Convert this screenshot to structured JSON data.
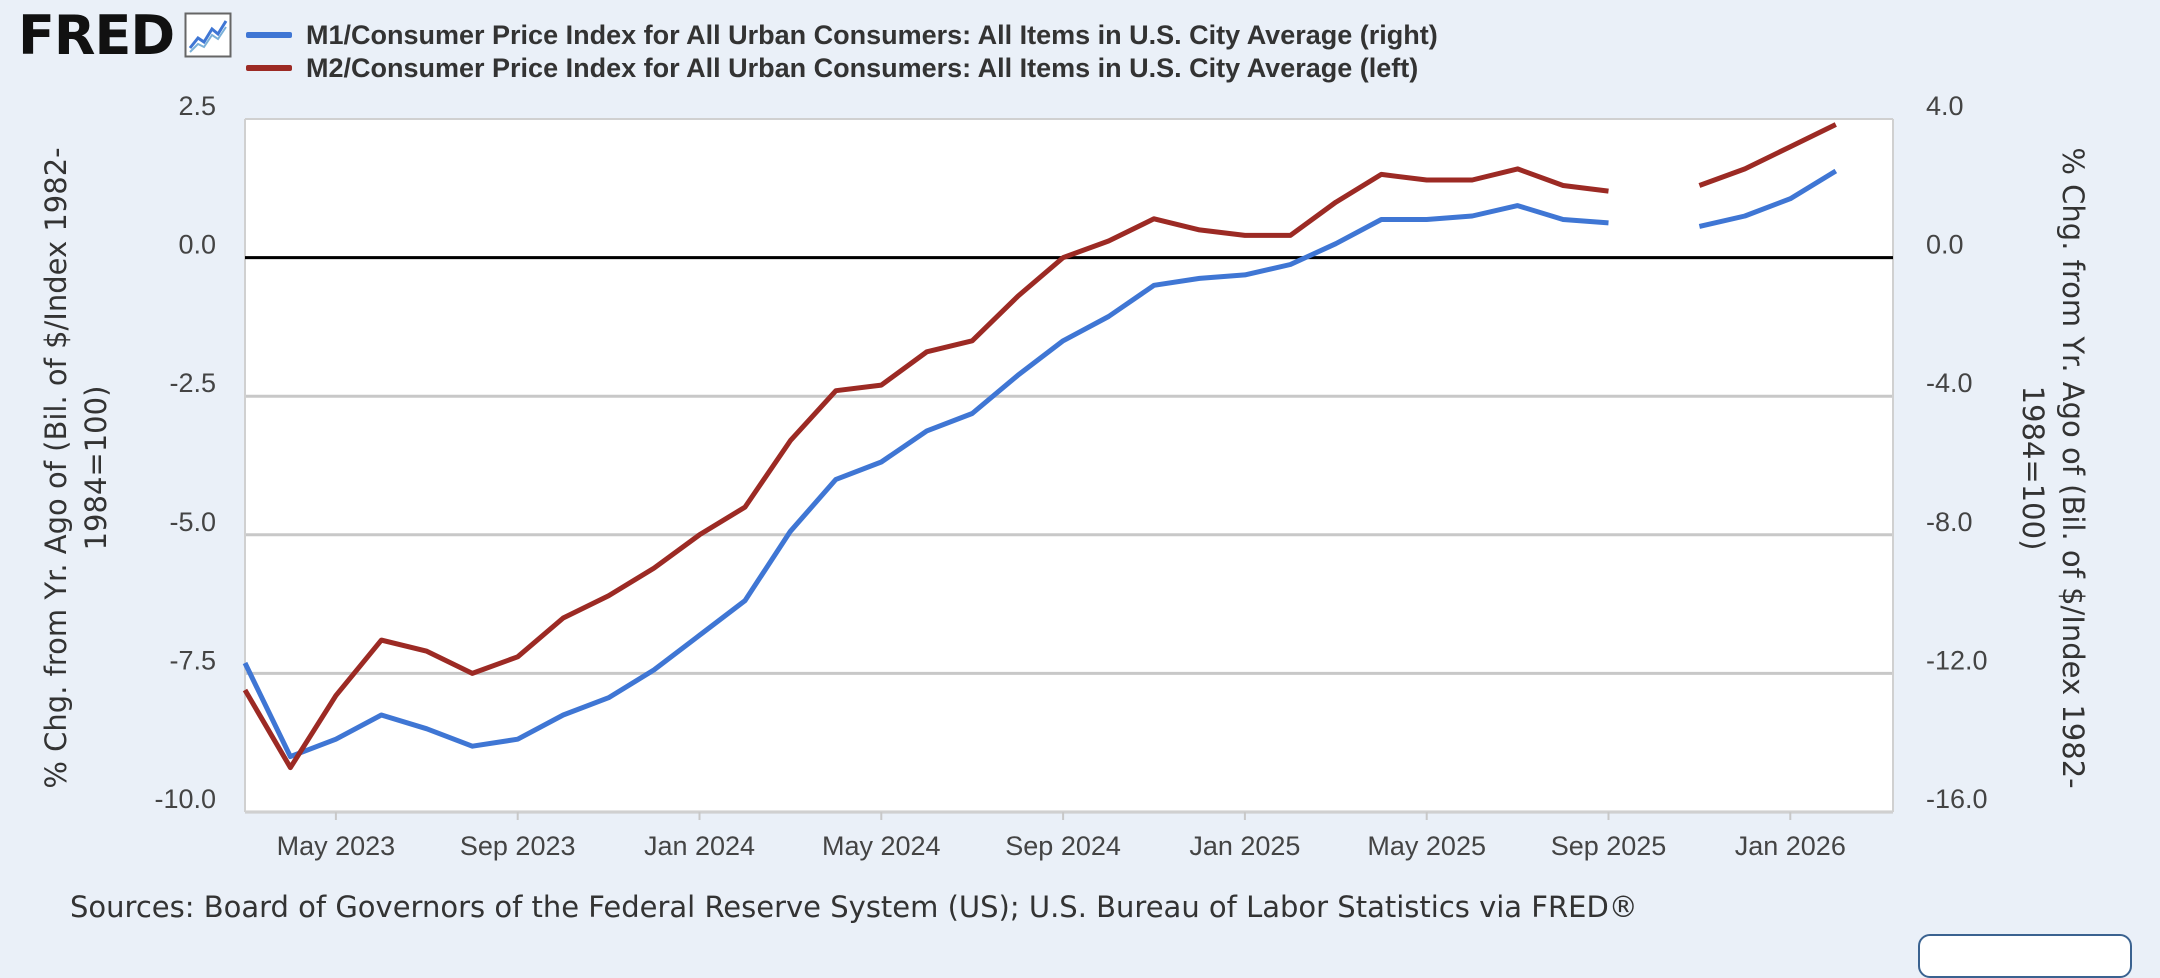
{
  "header": {
    "logo_text": "FRED",
    "legend": [
      {
        "label": "M1/Consumer Price Index for All Urban Consumers: All Items in U.S. City Average (right)",
        "color": "#3f76d4"
      },
      {
        "label": "M2/Consumer Price Index for All Urban Consumers: All Items in U.S. City Average (left)",
        "color": "#9c2a24"
      }
    ]
  },
  "source_note": "Sources: Board of Governors of the Federal Reserve System (US); U.S. Bureau of Labor Statistics via FRED®",
  "chart_data": {
    "type": "line",
    "x": [
      "2023-03",
      "2023-04",
      "2023-05",
      "2023-06",
      "2023-07",
      "2023-08",
      "2023-09",
      "2023-10",
      "2023-11",
      "2023-12",
      "2024-01",
      "2024-02",
      "2024-03",
      "2024-04",
      "2024-05",
      "2024-06",
      "2024-07",
      "2024-08",
      "2024-09",
      "2024-10",
      "2024-11",
      "2024-12",
      "2025-01",
      "2025-02",
      "2025-03",
      "2025-04",
      "2025-05",
      "2025-06",
      "2025-07",
      "2025-08",
      "2025-09",
      "2025-10",
      "2025-11",
      "2025-12",
      "2026-01",
      "2026-02"
    ],
    "x_ticks": [
      "May 2023",
      "Sep 2023",
      "Jan 2024",
      "May 2024",
      "Sep 2024",
      "Jan 2025",
      "May 2025",
      "Sep 2025",
      "Jan 2026"
    ],
    "x_tick_dates": [
      "2023-05",
      "2023-09",
      "2024-01",
      "2024-05",
      "2024-09",
      "2025-01",
      "2025-05",
      "2025-09",
      "2026-01"
    ],
    "left_axis": {
      "label": "% Chg. from Yr. Ago of (Bil. of $/Index 1982-1984=100)",
      "ticks": [
        "2.5",
        "0.0",
        "-2.5",
        "-5.0",
        "-7.5",
        "-10.0"
      ],
      "ylim": [
        -10.0,
        2.5
      ]
    },
    "right_axis": {
      "label": "% Chg. from Yr. Ago of (Bil. of $/Index 1982-1984=100)",
      "ticks": [
        "4.0",
        "0.0",
        "-4.0",
        "-8.0",
        "-12.0",
        "-16.0"
      ],
      "ylim": [
        -16.0,
        4.0
      ]
    },
    "series": [
      {
        "name": "M1/Consumer Price Index for All Urban Consumers: All Items in U.S. City Average (right)",
        "axis": "right",
        "color": "#3f76d4",
        "values": [
          -11.7,
          -14.4,
          -13.9,
          -13.2,
          -13.6,
          -14.1,
          -13.9,
          -13.2,
          -12.7,
          -11.9,
          -10.9,
          -9.9,
          -7.9,
          -6.4,
          -5.9,
          -5.0,
          -4.5,
          -3.4,
          -2.4,
          -1.7,
          -0.8,
          -0.6,
          -0.5,
          -0.2,
          0.4,
          1.1,
          1.1,
          1.2,
          1.5,
          1.1,
          1.0,
          null,
          0.9,
          1.2,
          1.7,
          2.5
        ]
      },
      {
        "name": "M2/Consumer Price Index for All Urban Consumers: All Items in U.S. City Average (left)",
        "axis": "left",
        "color": "#9c2a24",
        "values": [
          -7.8,
          -9.2,
          -7.9,
          -6.9,
          -7.1,
          -7.5,
          -7.2,
          -6.5,
          -6.1,
          -5.6,
          -5.0,
          -4.5,
          -3.3,
          -2.4,
          -2.3,
          -1.7,
          -1.5,
          -0.7,
          0.0,
          0.3,
          0.7,
          0.5,
          0.4,
          0.4,
          1.0,
          1.5,
          1.4,
          1.4,
          1.6,
          1.3,
          1.2,
          null,
          1.3,
          1.6,
          2.0,
          2.4
        ]
      }
    ],
    "zero_line": true,
    "grid": true,
    "legend_position": "top"
  }
}
